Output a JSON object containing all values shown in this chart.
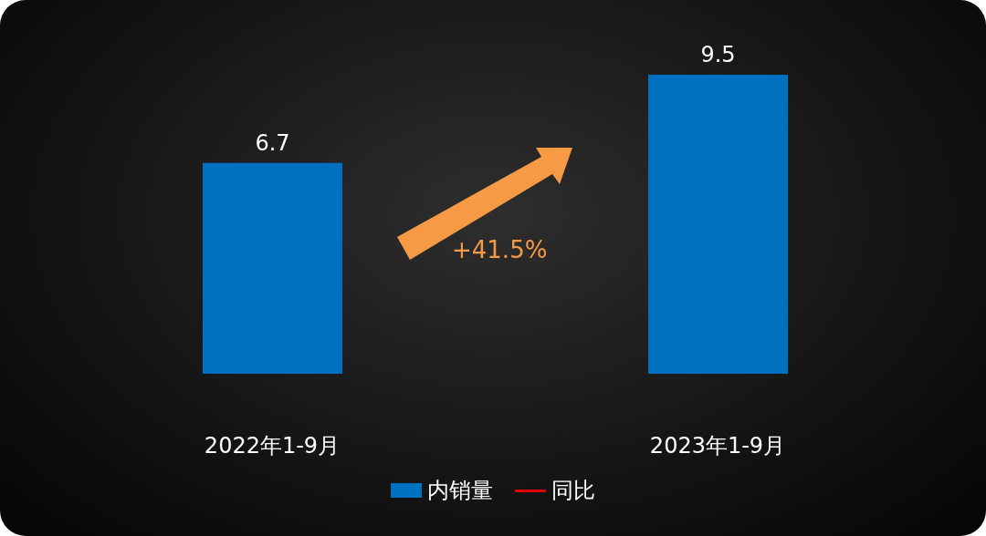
{
  "chart_data": {
    "type": "bar",
    "categories": [
      "2022年1-9月",
      "2023年1-9月"
    ],
    "series": [
      {
        "name": "内销量",
        "color": "#0070c0",
        "values": [
          6.7,
          9.5
        ]
      },
      {
        "name": "同比",
        "type": "line",
        "color": "#e00000",
        "values": [
          null,
          null
        ]
      }
    ],
    "data_labels": true,
    "tick_labels": "x",
    "legend": "bottom",
    "grid": false,
    "annotations": [
      "+41.5%"
    ]
  }
}
